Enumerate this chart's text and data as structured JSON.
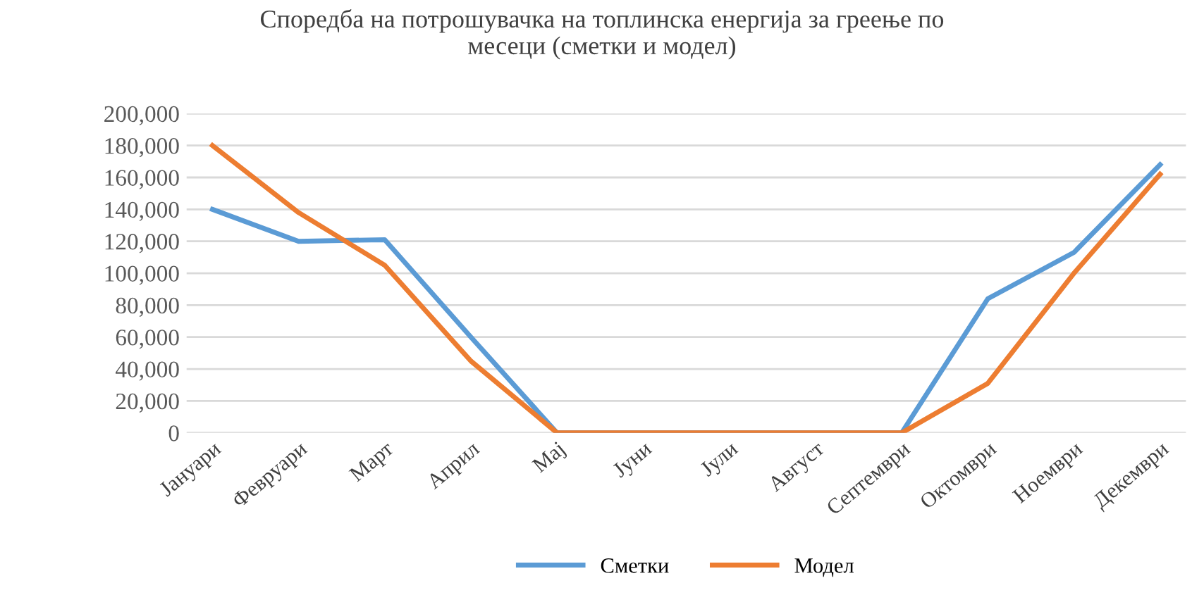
{
  "chart_data": {
    "type": "line",
    "title": "Споредба на потрошувачка на топлинска енергија за греење по\nмесеци (сметки и модел)",
    "categories": [
      "Јануари",
      "Февруари",
      "Март",
      "Април",
      "Мај",
      "Јуни",
      "Јули",
      "Август",
      "Септември",
      "Октомври",
      "Ноември",
      "Декември"
    ],
    "series": [
      {
        "name": "Сметки",
        "color": "#5b9bd5",
        "values": [
          140000,
          120000,
          121000,
          60000,
          0,
          0,
          0,
          0,
          0,
          84000,
          113000,
          168000
        ]
      },
      {
        "name": "Модел",
        "color": "#ed7d31",
        "values": [
          180000,
          138000,
          105000,
          45000,
          0,
          0,
          0,
          0,
          0,
          31000,
          100000,
          162000
        ]
      }
    ],
    "ylim": [
      0,
      200000
    ],
    "yticks": [
      {
        "value": 0,
        "label": "0"
      },
      {
        "value": 20000,
        "label": "20,000"
      },
      {
        "value": 40000,
        "label": "40,000"
      },
      {
        "value": 60000,
        "label": "60,000"
      },
      {
        "value": 80000,
        "label": "80,000"
      },
      {
        "value": 100000,
        "label": "100,000"
      },
      {
        "value": 120000,
        "label": "120,000"
      },
      {
        "value": 140000,
        "label": "140,000"
      },
      {
        "value": 160000,
        "label": "160,000"
      },
      {
        "value": 180000,
        "label": "180,000"
      },
      {
        "value": 200000,
        "label": "200,000"
      }
    ],
    "grid": "y",
    "legend": "bottom",
    "marker": "none",
    "line_style": "solid"
  }
}
